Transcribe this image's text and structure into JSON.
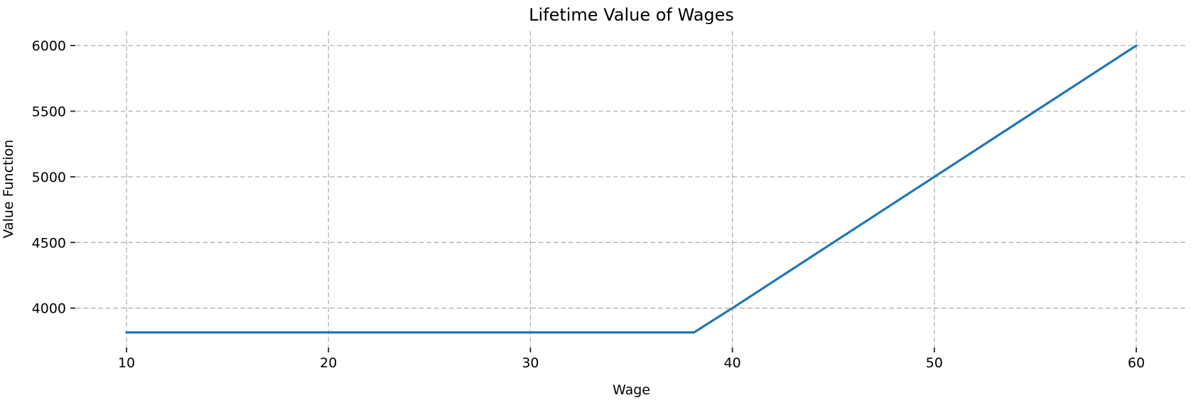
{
  "chart_data": {
    "type": "line",
    "title": "Lifetime Value of Wages",
    "xlabel": "Wage",
    "ylabel": "Value Function",
    "xlim": [
      7.5,
      62.5
    ],
    "ylim": [
      3706,
      6109
    ],
    "xticks": [
      10,
      20,
      30,
      40,
      50,
      60
    ],
    "yticks": [
      4000,
      4500,
      5000,
      5500,
      6000
    ],
    "grid": true,
    "grid_style": "dashed",
    "grid_color": "#b0b0b0",
    "tick_color": "#262626",
    "background": "#ffffff",
    "legend": "none",
    "series": [
      {
        "name": "value-function",
        "color": "#1f77b4",
        "line_width": 3.2,
        "points": [
          [
            10,
            3815
          ],
          [
            15,
            3815
          ],
          [
            20,
            3815
          ],
          [
            25,
            3815
          ],
          [
            30,
            3815
          ],
          [
            35,
            3815
          ],
          [
            38.1,
            3815
          ],
          [
            40,
            4000
          ],
          [
            45,
            4500
          ],
          [
            50,
            5000
          ],
          [
            55,
            5500
          ],
          [
            60,
            6000
          ]
        ]
      }
    ]
  }
}
